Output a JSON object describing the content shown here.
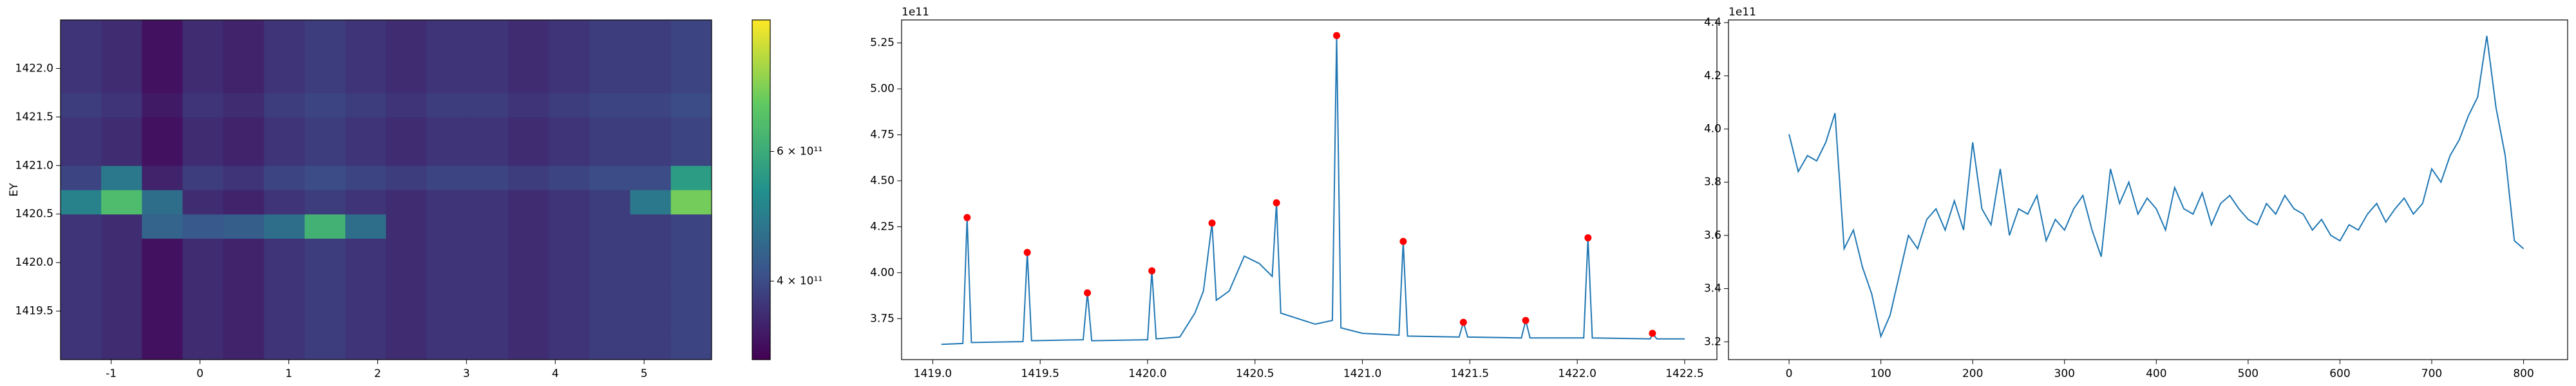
{
  "chart_data": [
    {
      "type": "heatmap",
      "ylabel": "EY",
      "x": [
        -1.341,
        -0.883,
        -0.425,
        0.033,
        0.491,
        0.949,
        1.407,
        1.865,
        2.323,
        2.781,
        3.24,
        3.698,
        4.156,
        4.614,
        5.072,
        5.53
      ],
      "y": [
        1419.125,
        1419.375,
        1419.625,
        1419.875,
        1420.125,
        1420.375,
        1420.625,
        1420.875,
        1421.125,
        1421.375,
        1421.625,
        1421.875,
        1422.125,
        1422.375
      ],
      "z": [
        [
          370000000000.0,
          360000000000.0,
          330000000000.0,
          360000000000.0,
          350000000000.0,
          370000000000.0,
          380000000000.0,
          370000000000.0,
          360000000000.0,
          370000000000.0,
          370000000000.0,
          360000000000.0,
          370000000000.0,
          380000000000.0,
          380000000000.0,
          390000000000.0
        ],
        [
          370000000000.0,
          360000000000.0,
          330000000000.0,
          360000000000.0,
          350000000000.0,
          370000000000.0,
          380000000000.0,
          370000000000.0,
          360000000000.0,
          370000000000.0,
          370000000000.0,
          360000000000.0,
          370000000000.0,
          380000000000.0,
          380000000000.0,
          390000000000.0
        ],
        [
          370000000000.0,
          360000000000.0,
          330000000000.0,
          360000000000.0,
          350000000000.0,
          370000000000.0,
          380000000000.0,
          370000000000.0,
          360000000000.0,
          370000000000.0,
          370000000000.0,
          360000000000.0,
          370000000000.0,
          380000000000.0,
          380000000000.0,
          390000000000.0
        ],
        [
          370000000000.0,
          360000000000.0,
          330000000000.0,
          360000000000.0,
          350000000000.0,
          370000000000.0,
          380000000000.0,
          370000000000.0,
          360000000000.0,
          370000000000.0,
          370000000000.0,
          360000000000.0,
          370000000000.0,
          380000000000.0,
          380000000000.0,
          390000000000.0
        ],
        [
          370000000000.0,
          360000000000.0,
          330000000000.0,
          360000000000.0,
          350000000000.0,
          370000000000.0,
          380000000000.0,
          370000000000.0,
          360000000000.0,
          370000000000.0,
          370000000000.0,
          360000000000.0,
          370000000000.0,
          380000000000.0,
          380000000000.0,
          390000000000.0
        ],
        [
          370000000000.0,
          360000000000.0,
          440000000000.0,
          420000000000.0,
          430000000000.0,
          460000000000.0,
          620000000000.0,
          460000000000.0,
          360000000000.0,
          370000000000.0,
          370000000000.0,
          360000000000.0,
          370000000000.0,
          380000000000.0,
          380000000000.0,
          390000000000.0
        ],
        [
          500000000000.0,
          650000000000.0,
          460000000000.0,
          360000000000.0,
          350000000000.0,
          370000000000.0,
          380000000000.0,
          370000000000.0,
          360000000000.0,
          370000000000.0,
          370000000000.0,
          360000000000.0,
          370000000000.0,
          380000000000.0,
          480000000000.0,
          720000000000.0
        ],
        [
          390000000000.0,
          480000000000.0,
          350000000000.0,
          380000000000.0,
          370000000000.0,
          390000000000.0,
          400000000000.0,
          390000000000.0,
          380000000000.0,
          390000000000.0,
          390000000000.0,
          380000000000.0,
          390000000000.0,
          400000000000.0,
          400000000000.0,
          560000000000.0
        ],
        [
          370000000000.0,
          360000000000.0,
          330000000000.0,
          360000000000.0,
          350000000000.0,
          370000000000.0,
          380000000000.0,
          370000000000.0,
          360000000000.0,
          370000000000.0,
          370000000000.0,
          360000000000.0,
          370000000000.0,
          380000000000.0,
          380000000000.0,
          390000000000.0
        ],
        [
          370000000000.0,
          360000000000.0,
          330000000000.0,
          360000000000.0,
          350000000000.0,
          370000000000.0,
          380000000000.0,
          370000000000.0,
          360000000000.0,
          370000000000.0,
          370000000000.0,
          360000000000.0,
          370000000000.0,
          380000000000.0,
          380000000000.0,
          390000000000.0
        ],
        [
          380000000000.0,
          370000000000.0,
          340000000000.0,
          370000000000.0,
          360000000000.0,
          380000000000.0,
          390000000000.0,
          380000000000.0,
          370000000000.0,
          380000000000.0,
          380000000000.0,
          370000000000.0,
          380000000000.0,
          390000000000.0,
          390000000000.0,
          400000000000.0
        ],
        [
          370000000000.0,
          360000000000.0,
          330000000000.0,
          360000000000.0,
          350000000000.0,
          370000000000.0,
          380000000000.0,
          370000000000.0,
          360000000000.0,
          370000000000.0,
          370000000000.0,
          360000000000.0,
          370000000000.0,
          380000000000.0,
          380000000000.0,
          390000000000.0
        ],
        [
          370000000000.0,
          360000000000.0,
          330000000000.0,
          360000000000.0,
          350000000000.0,
          370000000000.0,
          380000000000.0,
          370000000000.0,
          360000000000.0,
          370000000000.0,
          370000000000.0,
          360000000000.0,
          370000000000.0,
          380000000000.0,
          380000000000.0,
          390000000000.0
        ],
        [
          370000000000.0,
          360000000000.0,
          330000000000.0,
          360000000000.0,
          350000000000.0,
          370000000000.0,
          380000000000.0,
          370000000000.0,
          360000000000.0,
          370000000000.0,
          370000000000.0,
          360000000000.0,
          370000000000.0,
          380000000000.0,
          380000000000.0,
          390000000000.0
        ]
      ],
      "xlim": [
        -1.57,
        5.76
      ],
      "xticks": [
        -1,
        0,
        1,
        2,
        3,
        4,
        5
      ],
      "ylim": [
        1419.0,
        1422.5
      ],
      "yticks": [
        {
          "value": 1419.5,
          "label": "1419.5"
        },
        {
          "value": 1420,
          "label": "1420.0"
        },
        {
          "value": 1420.5,
          "label": "1420.5"
        },
        {
          "value": 1421,
          "label": "1421.0"
        },
        {
          "value": 1421.5,
          "label": "1421.5"
        },
        {
          "value": 1422,
          "label": "1422.0"
        }
      ],
      "colormap": "viridis",
      "cscale": "log",
      "clim": [
        313000000000.0,
        905000000000.0
      ],
      "cticks": [
        {
          "value": 400000000000.0,
          "label": "4 × 10¹¹"
        },
        {
          "value": 600000000000.0,
          "label": "6 × 10¹¹"
        }
      ]
    },
    {
      "type": "line",
      "offset_text": "1e11",
      "xlim": [
        1418.855,
        1422.65
      ],
      "xticks": [
        {
          "value": 1419,
          "label": "1419.0"
        },
        1419.5,
        {
          "value": 1420,
          "label": "1420.0"
        },
        1420.5,
        {
          "value": 1421,
          "label": "1421.0"
        },
        1421.5,
        {
          "value": 1422,
          "label": "1422.0"
        },
        1422.5
      ],
      "ylim": [
        352700000000.0,
        537500000000.0
      ],
      "yticks": [
        {
          "value": 375000000000.0,
          "label": "3.75"
        },
        {
          "value": 400000000000.0,
          "label": "4.00"
        },
        {
          "value": 425000000000.0,
          "label": "4.25"
        },
        {
          "value": 450000000000.0,
          "label": "4.50"
        },
        {
          "value": 475000000000.0,
          "label": "4.75"
        },
        {
          "value": 500000000000.0,
          "label": "5.00"
        },
        {
          "value": 525000000000.0,
          "label": "5.25"
        }
      ],
      "series": [
        {
          "color": "#1f77b4",
          "style": "line",
          "x": [
            1419.04,
            1419.14,
            1419.16,
            1419.18,
            1419.42,
            1419.44,
            1419.46,
            1419.7,
            1419.72,
            1419.74,
            1420.0,
            1420.02,
            1420.04,
            1420.15,
            1420.22,
            1420.26,
            1420.3,
            1420.32,
            1420.38,
            1420.45,
            1420.52,
            1420.58,
            1420.6,
            1420.62,
            1420.7,
            1420.78,
            1420.86,
            1420.88,
            1420.9,
            1421.0,
            1421.17,
            1421.19,
            1421.21,
            1421.45,
            1421.47,
            1421.49,
            1421.74,
            1421.76,
            1421.78,
            1422.03,
            1422.05,
            1422.07,
            1422.34,
            1422.35,
            1422.37,
            1422.5
          ],
          "values": [
            361000000000.0,
            361500000000.0,
            430000000000.0,
            362000000000.0,
            362500000000.0,
            411000000000.0,
            363000000000.0,
            363500000000.0,
            389000000000.0,
            363000000000.0,
            363500000000.0,
            401000000000.0,
            364000000000.0,
            365000000000.0,
            378000000000.0,
            390000000000.0,
            427000000000.0,
            385000000000.0,
            390000000000.0,
            409000000000.0,
            405000000000.0,
            398000000000.0,
            438000000000.0,
            378000000000.0,
            375000000000.0,
            372000000000.0,
            374000000000.0,
            529000000000.0,
            370000000000.0,
            367000000000.0,
            366000000000.0,
            417000000000.0,
            365500000000.0,
            365000000000.0,
            373000000000.0,
            365000000000.0,
            364500000000.0,
            374000000000.0,
            364500000000.0,
            364500000000.0,
            419000000000.0,
            364500000000.0,
            364000000000.0,
            367000000000.0,
            364000000000.0,
            364000000000.0
          ]
        },
        {
          "color": "red",
          "style": "points",
          "x": [
            1419.16,
            1419.44,
            1419.72,
            1420.02,
            1420.3,
            1420.6,
            1420.88,
            1421.19,
            1421.47,
            1421.76,
            1422.05,
            1422.35
          ],
          "values": [
            430000000000.0,
            411000000000.0,
            389000000000.0,
            401000000000.0,
            427000000000.0,
            438000000000.0,
            529000000000.0,
            417000000000.0,
            373000000000.0,
            374000000000.0,
            419000000000.0,
            367000000000.0
          ]
        }
      ]
    },
    {
      "type": "line",
      "offset_text": "1e11",
      "xlim": [
        -66,
        848
      ],
      "xticks": [
        0,
        100,
        200,
        300,
        400,
        500,
        600,
        700,
        800
      ],
      "ylim": [
        313300000000.0,
        441000000000.0
      ],
      "yticks": [
        {
          "value": 320000000000.0,
          "label": "3.2"
        },
        {
          "value": 340000000000.0,
          "label": "3.4"
        },
        {
          "value": 360000000000.0,
          "label": "3.6"
        },
        {
          "value": 380000000000.0,
          "label": "3.8"
        },
        {
          "value": 400000000000.0,
          "label": "4.0"
        },
        {
          "value": 420000000000.0,
          "label": "4.2"
        },
        {
          "value": 440000000000.0,
          "label": "4.4"
        }
      ],
      "series": [
        {
          "color": "#1f77b4",
          "style": "line",
          "x": [
            0,
            10,
            20,
            30,
            40,
            50,
            60,
            70,
            80,
            90,
            100,
            110,
            120,
            130,
            140,
            150,
            160,
            170,
            180,
            190,
            200,
            210,
            220,
            230,
            240,
            250,
            260,
            270,
            280,
            290,
            300,
            310,
            320,
            330,
            340,
            350,
            360,
            370,
            380,
            390,
            400,
            410,
            420,
            430,
            440,
            450,
            460,
            470,
            480,
            490,
            500,
            510,
            520,
            530,
            540,
            550,
            560,
            570,
            580,
            590,
            600,
            610,
            620,
            630,
            640,
            650,
            660,
            670,
            680,
            690,
            700,
            710,
            720,
            730,
            740,
            750,
            760,
            770,
            780,
            790,
            800
          ],
          "values": [
            398000000000.0,
            384000000000.0,
            390000000000.0,
            388000000000.0,
            395000000000.0,
            406000000000.0,
            355000000000.0,
            362000000000.0,
            348000000000.0,
            338000000000.0,
            322000000000.0,
            330000000000.0,
            345000000000.0,
            360000000000.0,
            355000000000.0,
            366000000000.0,
            370000000000.0,
            362000000000.0,
            373000000000.0,
            362000000000.0,
            395000000000.0,
            370000000000.0,
            364000000000.0,
            385000000000.0,
            360000000000.0,
            370000000000.0,
            368000000000.0,
            375000000000.0,
            358000000000.0,
            366000000000.0,
            362000000000.0,
            370000000000.0,
            375000000000.0,
            362000000000.0,
            352000000000.0,
            385000000000.0,
            372000000000.0,
            380000000000.0,
            368000000000.0,
            374000000000.0,
            370000000000.0,
            362000000000.0,
            378000000000.0,
            370000000000.0,
            368000000000.0,
            376000000000.0,
            364000000000.0,
            372000000000.0,
            375000000000.0,
            370000000000.0,
            366000000000.0,
            364000000000.0,
            372000000000.0,
            368000000000.0,
            375000000000.0,
            370000000000.0,
            368000000000.0,
            362000000000.0,
            366000000000.0,
            360000000000.0,
            358000000000.0,
            364000000000.0,
            362000000000.0,
            368000000000.0,
            372000000000.0,
            365000000000.0,
            370000000000.0,
            374000000000.0,
            368000000000.0,
            372000000000.0,
            385000000000.0,
            380000000000.0,
            390000000000.0,
            396000000000.0,
            405000000000.0,
            412000000000.0,
            435000000000.0,
            408000000000.0,
            390000000000.0,
            358000000000.0,
            355000000000.0
          ]
        }
      ]
    }
  ]
}
